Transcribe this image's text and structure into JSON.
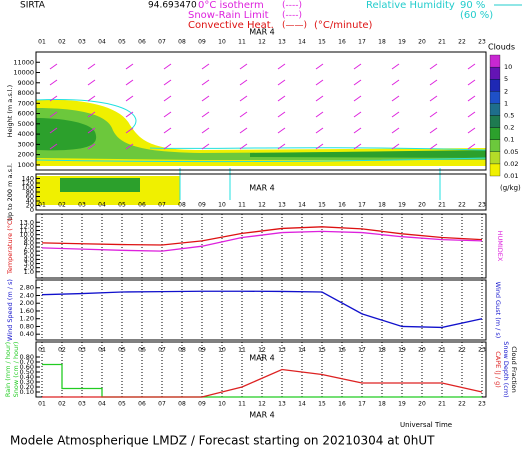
{
  "header": {
    "station": "SIRTA",
    "coord": "94.693470",
    "isotherm": "0°C isotherm",
    "isotherm_key": "(----)",
    "snow_rain": "Snow-Rain Limit",
    "snow_rain_key": "(----)",
    "convective": "Convective Heat.",
    "convective_key": "(——)",
    "convective_unit": "(°C/minute)",
    "rh": "Relative Humidity",
    "rh90": "90 %",
    "rh60": "(60 %)"
  },
  "hours": [
    "01",
    "02",
    "03",
    "04",
    "05",
    "06",
    "07",
    "08",
    "09",
    "10",
    "11",
    "12",
    "13",
    "14",
    "15",
    "16",
    "17",
    "18",
    "19",
    "20",
    "21",
    "22",
    "23"
  ],
  "date": "MAR  4",
  "universal_time": "Universal Time",
  "footer": "Modele Atmospherique LMDZ / Forecast starting on 20210304 at 0hUT",
  "chart_data": [
    {
      "type": "contour",
      "ylabel": "Height (m a.s.l.)",
      "ylim": [
        500,
        12000
      ],
      "yticks": [
        1000,
        2000,
        3000,
        4000,
        5000,
        6000,
        7000,
        8000,
        9000,
        10000,
        11000
      ],
      "colorbar": {
        "title": "Clouds",
        "unit": "(g/kg)",
        "ticks": [
          0.01,
          0.02,
          0.05,
          0.1,
          0.2,
          0.5,
          1,
          2,
          5,
          10
        ],
        "colors": [
          "#f0f000",
          "#b4dc28",
          "#6cc83c",
          "#2ca02c",
          "#1e7a50",
          "#1e6e8c",
          "#1e50c8",
          "#1e28b4",
          "#6414b4",
          "#c828d2"
        ]
      }
    },
    {
      "type": "contour",
      "ylabel": "Up to 200 m a.s.l.",
      "ylim": [
        0,
        160
      ],
      "yticks": [
        0,
        20,
        40,
        60,
        80,
        100,
        120,
        140
      ]
    },
    {
      "type": "line",
      "ylabel": "Temperature (°C)",
      "y2label": "HUMIDEX",
      "ylim": [
        -0.5,
        15
      ],
      "yticks": [
        {
          "value": 1,
          "label": "1.0"
        },
        {
          "value": 2,
          "label": "2.0"
        },
        {
          "value": 3,
          "label": "3.0"
        },
        {
          "value": 4,
          "label": "4.0"
        },
        {
          "value": 5,
          "label": "5.0"
        },
        {
          "value": 6,
          "label": "6.0"
        },
        {
          "value": 7,
          "label": "7.0"
        },
        {
          "value": 8,
          "label": "8.0"
        },
        {
          "value": 9,
          "label": "9.0"
        },
        {
          "value": 10,
          "label": "10.0"
        },
        {
          "value": 11,
          "label": "11.0"
        },
        {
          "value": 12,
          "label": "12.0"
        },
        {
          "value": 13,
          "label": "13.0"
        }
      ],
      "x": [
        1,
        3,
        5,
        7,
        9,
        11,
        13,
        15,
        17,
        19,
        21,
        23
      ],
      "series": [
        {
          "color": "#dd1111",
          "values": [
            8.0,
            7.8,
            7.6,
            7.5,
            8.5,
            10.3,
            11.5,
            11.9,
            11.4,
            10.2,
            9.3,
            8.8
          ]
        },
        {
          "color": "#dd22dd",
          "values": [
            6.8,
            6.5,
            6.2,
            6.0,
            7.2,
            9.3,
            10.5,
            10.8,
            10.5,
            9.5,
            8.8,
            8.5
          ]
        }
      ]
    },
    {
      "type": "line",
      "ylabel": "Wind Speed (m / s)",
      "y2label": "Wind Gust (m / s)",
      "ylim": [
        0.1,
        3.2
      ],
      "yticks": [
        {
          "value": 0.4,
          "label": "0.40"
        },
        {
          "value": 0.8,
          "label": "0.80"
        },
        {
          "value": 1.2,
          "label": "1.20"
        },
        {
          "value": 1.6,
          "label": "1.60"
        },
        {
          "value": 2.0,
          "label": "2.00"
        },
        {
          "value": 2.4,
          "label": "2.40"
        },
        {
          "value": 2.8,
          "label": "2.80"
        }
      ],
      "x": [
        1,
        3,
        5,
        7,
        9,
        11,
        13,
        15,
        17,
        19,
        21,
        23
      ],
      "series": [
        {
          "color": "#1111cc",
          "values": [
            2.44,
            2.5,
            2.58,
            2.6,
            2.62,
            2.62,
            2.61,
            2.58,
            1.45,
            0.8,
            0.75,
            1.2
          ]
        }
      ]
    },
    {
      "type": "line",
      "ylabel": "Rain (mm / hour)",
      "ylabel2": "Snow (cm / hour)",
      "y2label": "CAPE (J / g)",
      "y2label2": "Snow Depth (cm)",
      "y2label3": "Cloud Fraction",
      "ylim": [
        0,
        1.1
      ],
      "yticks": [
        {
          "value": 0.1,
          "label": "0.10"
        },
        {
          "value": 0.2,
          "label": "0.20"
        },
        {
          "value": 0.3,
          "label": "0.30"
        },
        {
          "value": 0.4,
          "label": "0.40"
        },
        {
          "value": 0.5,
          "label": "0.50"
        },
        {
          "value": 0.6,
          "label": "0.60"
        },
        {
          "value": 0.7,
          "label": "0.70"
        },
        {
          "value": 0.8,
          "label": "0.80"
        }
      ],
      "series": [
        {
          "color": "#22cc22",
          "x": [
            1,
            2,
            2,
            4,
            4,
            23
          ],
          "values": [
            0.65,
            0.65,
            0.17,
            0.17,
            0,
            0
          ]
        },
        {
          "color": "#dd2222",
          "x": [
            1,
            9,
            11,
            13,
            15,
            17,
            19,
            21,
            23
          ],
          "values": [
            0,
            0,
            0.2,
            0.55,
            0.45,
            0.28,
            0.28,
            0.28,
            0.1
          ]
        }
      ]
    }
  ]
}
